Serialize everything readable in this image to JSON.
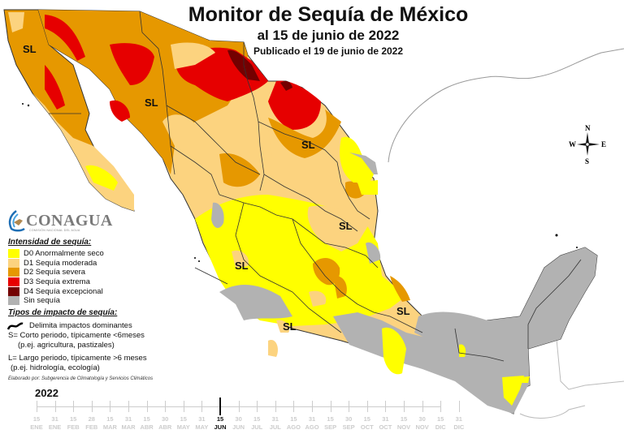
{
  "header": {
    "title": "Monitor de Sequía de México",
    "subtitle": "al 15 de junio de 2022",
    "published": "Publicado el 19 de junio de 2022"
  },
  "logo": {
    "name": "CONAGUA",
    "subtitle": "COMISIÓN NACIONAL DEL AGUA"
  },
  "legend": {
    "heading": "Intensidad de sequía:",
    "items": [
      {
        "label": "D0 Anormalmente seco",
        "color": "#FFFF00"
      },
      {
        "label": "D1 Sequía moderada",
        "color": "#FCD37F"
      },
      {
        "label": "D2 Sequía severa",
        "color": "#E69800"
      },
      {
        "label": "D3 Sequía extrema",
        "color": "#E60000"
      },
      {
        "label": "D4 Sequía excepcional",
        "color": "#730000"
      },
      {
        "label": "Sin sequía",
        "color": "#B2B2B2"
      }
    ]
  },
  "impact": {
    "heading": "Tipos de impacto de sequía:",
    "delimiter": "Delimita impactos dominantes",
    "short_1": "S= Corto periodo, típicamente <6meses",
    "short_2": "(p.ej. agricultura, pastizales)",
    "long_1": "L= Largo periodo, típicamente >6 meses",
    "long_2": "(p.ej. hidrología, ecología)"
  },
  "credit": "Elaborado por: Subgerencia de Climatología y Servicios Climáticos",
  "compass": {
    "n": "N",
    "s": "S",
    "e": "E",
    "w": "W"
  },
  "map_labels": [
    "SL",
    "SL",
    "SL",
    "SL",
    "SL",
    "SL",
    "SL"
  ],
  "timeline": {
    "year": "2022",
    "current_index": 10,
    "ticks": [
      {
        "day": "15",
        "month": "ENE"
      },
      {
        "day": "31",
        "month": "ENE"
      },
      {
        "day": "15",
        "month": "FEB"
      },
      {
        "day": "28",
        "month": "FEB"
      },
      {
        "day": "15",
        "month": "MAR"
      },
      {
        "day": "31",
        "month": "MAR"
      },
      {
        "day": "15",
        "month": "ABR"
      },
      {
        "day": "30",
        "month": "ABR"
      },
      {
        "day": "15",
        "month": "MAY"
      },
      {
        "day": "31",
        "month": "MAY"
      },
      {
        "day": "15",
        "month": "JUN"
      },
      {
        "day": "30",
        "month": "JUN"
      },
      {
        "day": "15",
        "month": "JUL"
      },
      {
        "day": "31",
        "month": "JUL"
      },
      {
        "day": "15",
        "month": "AGO"
      },
      {
        "day": "31",
        "month": "AGO"
      },
      {
        "day": "15",
        "month": "SEP"
      },
      {
        "day": "30",
        "month": "SEP"
      },
      {
        "day": "15",
        "month": "OCT"
      },
      {
        "day": "31",
        "month": "OCT"
      },
      {
        "day": "15",
        "month": "NOV"
      },
      {
        "day": "30",
        "month": "NOV"
      },
      {
        "day": "15",
        "month": "DIC"
      },
      {
        "day": "31",
        "month": "DIC"
      }
    ]
  }
}
